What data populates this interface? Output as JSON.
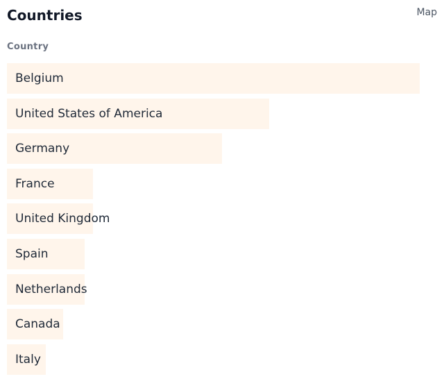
{
  "header": {
    "title": "Countries",
    "link": "Map"
  },
  "list": {
    "column": "Country",
    "rows": [
      {
        "name": "Belgium",
        "share": 96
      },
      {
        "name": "United States of America",
        "share": 61
      },
      {
        "name": "Germany",
        "share": 50
      },
      {
        "name": "France",
        "share": 20
      },
      {
        "name": "United Kingdom",
        "share": 20
      },
      {
        "name": "Spain",
        "share": 18
      },
      {
        "name": "Netherlands",
        "share": 18
      },
      {
        "name": "Canada",
        "share": 13
      },
      {
        "name": "Italy",
        "share": 9
      }
    ]
  }
}
